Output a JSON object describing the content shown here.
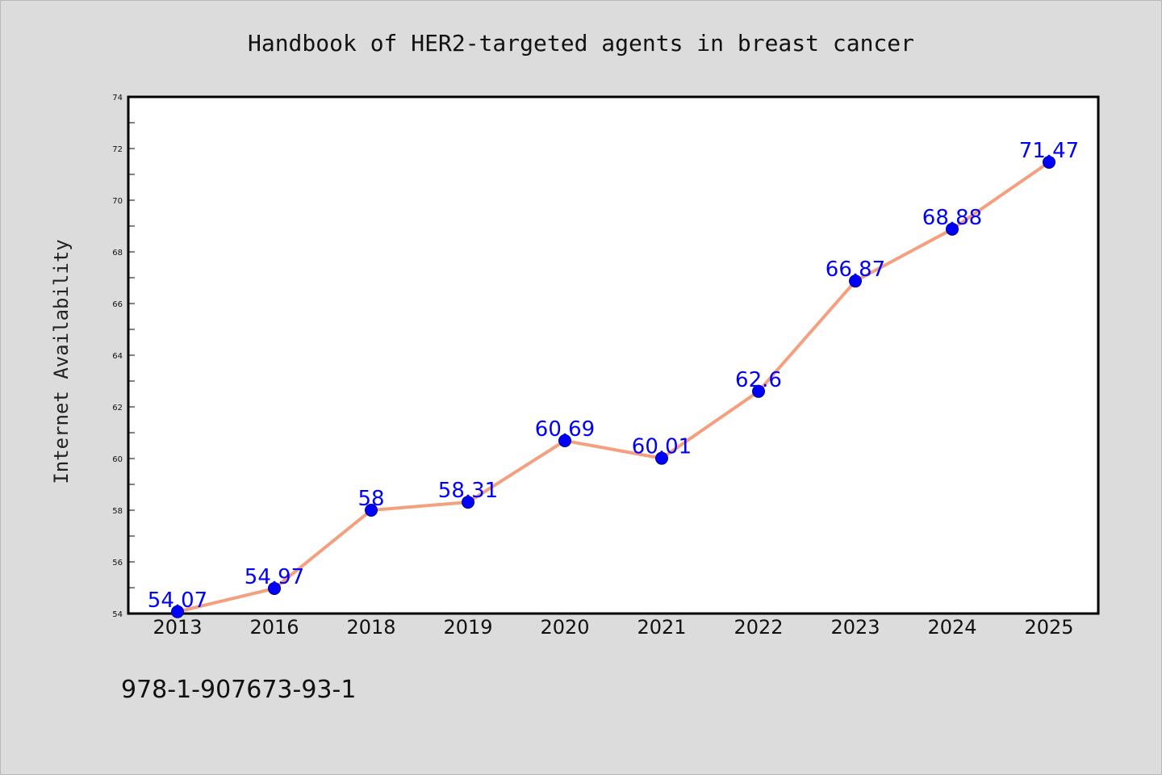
{
  "chart_data": {
    "type": "line",
    "title": "Handbook of HER2-targeted agents in breast cancer",
    "xlabel": "",
    "ylabel": "Internet Availability",
    "categories": [
      "2013",
      "2016",
      "2018",
      "2019",
      "2020",
      "2021",
      "2022",
      "2023",
      "2024",
      "2025"
    ],
    "series": [
      {
        "values": [
          54.07,
          54.97,
          58,
          58.31,
          60.69,
          60.01,
          62.6,
          66.87,
          68.88,
          71.47
        ],
        "labels": [
          "54.07",
          "54.97",
          "58",
          "58.31",
          "60.69",
          "60.01",
          "62.6",
          "66.87",
          "68.88",
          "71.47"
        ],
        "line_color": "#f4a07f",
        "marker_color": "#0000ff"
      }
    ],
    "ylim": [
      54,
      74
    ],
    "yticks": [
      "54",
      "56",
      "58",
      "60",
      "62",
      "64",
      "66",
      "68",
      "70",
      "72",
      "74"
    ],
    "grid": false,
    "legend": "none"
  },
  "footer_text": "978-1-907673-93-1"
}
